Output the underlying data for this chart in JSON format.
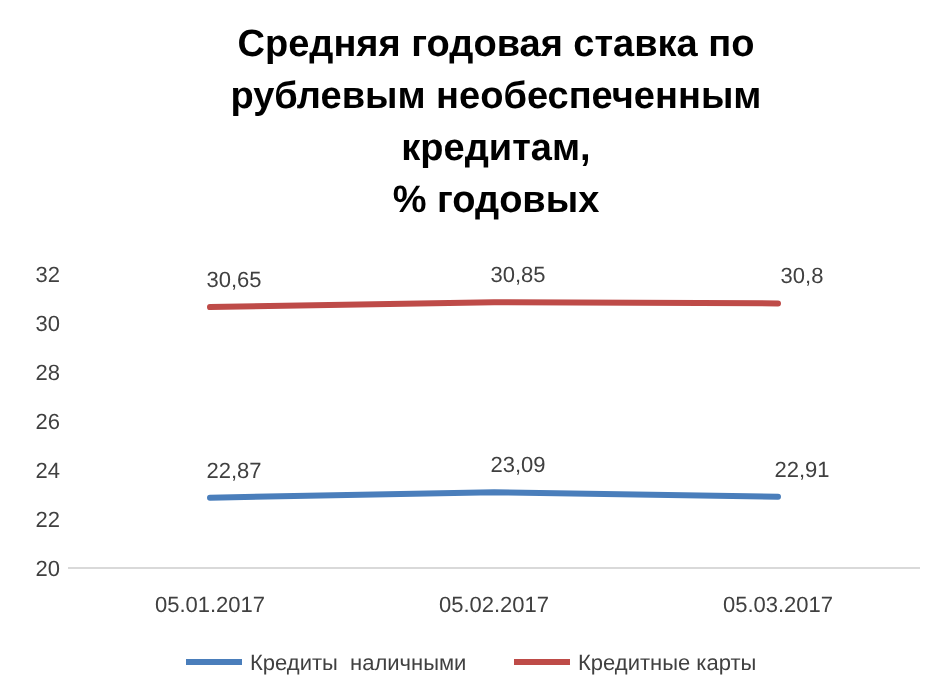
{
  "chart_data": {
    "type": "line",
    "title": "Средняя годовая ставка по\nрублевым необеспеченным\nкредитам,\n% годовых",
    "categories": [
      "05.01.2017",
      "05.02.2017",
      "05.03.2017"
    ],
    "series": [
      {
        "name": "Кредиты  наличными",
        "color": "#4a7ebb",
        "values": [
          22.87,
          23.09,
          22.91
        ],
        "value_labels": [
          "22,87",
          "23,09",
          "22,91"
        ]
      },
      {
        "name": "Кредитные карты",
        "color": "#be4b48",
        "values": [
          30.65,
          30.85,
          30.8
        ],
        "value_labels": [
          "30,65",
          "30,85",
          "30,8"
        ]
      }
    ],
    "ylim": [
      20,
      32
    ],
    "yticks": [
      20,
      22,
      24,
      26,
      28,
      30,
      32
    ],
    "grid": false,
    "legend": "bottom",
    "marker": "none",
    "line_style": "solid"
  }
}
